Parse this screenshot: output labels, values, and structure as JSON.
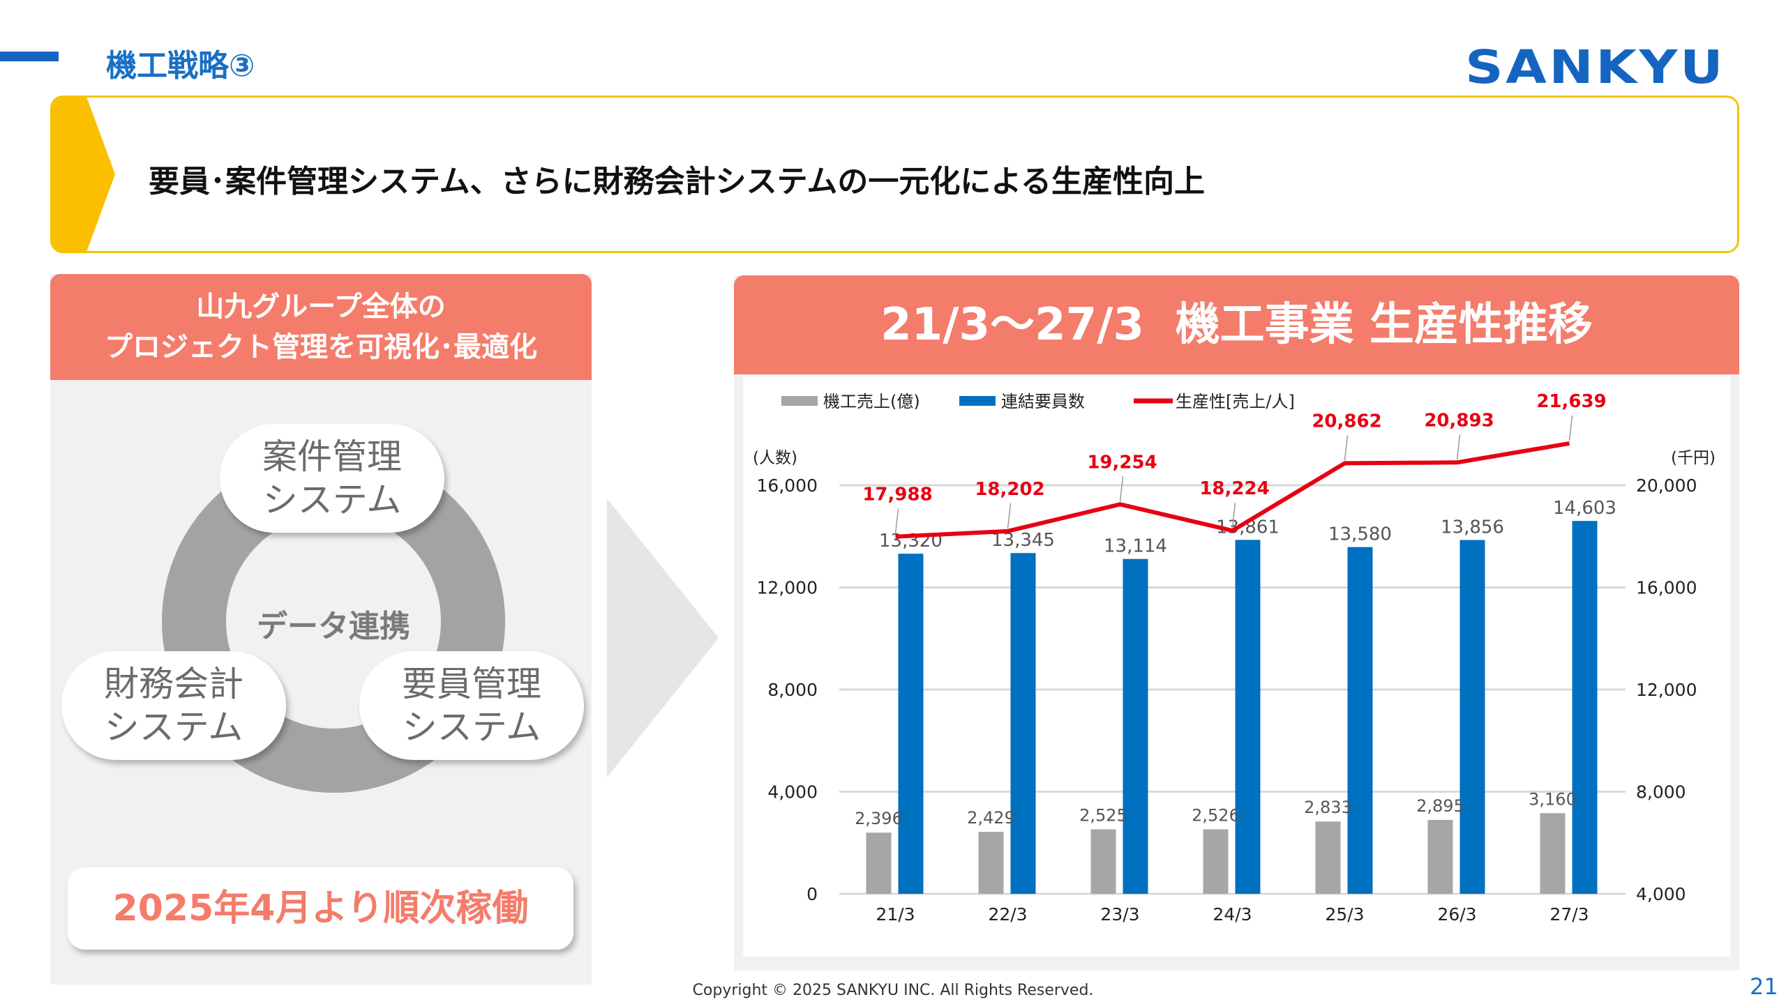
{
  "header": {
    "title": "機工戦略③",
    "logo": "SANKYU"
  },
  "banner": {
    "text": "要員･案件管理システム、さらに財務会計システムの一元化による生産性向上"
  },
  "left": {
    "heading_line1": "山九グループ全体の",
    "heading_line2": "プロジェクト管理を可視化･最適化",
    "center": "データ連携",
    "bubbles": [
      {
        "l1": "案件管理",
        "l2": "システム"
      },
      {
        "l1": "財務会計",
        "l2": "システム"
      },
      {
        "l1": "要員管理",
        "l2": "システム"
      }
    ],
    "start_label": "2025年4月より順次稼働"
  },
  "right": {
    "heading": "21/3～27/3  機工事業 生産性推移"
  },
  "chart_data": {
    "type": "bar+line",
    "categories": [
      "21/3",
      "22/3",
      "23/3",
      "24/3",
      "25/3",
      "26/3",
      "27/3"
    ],
    "left_axis": {
      "label": "(人数)",
      "range": [
        0,
        16000
      ],
      "ticks": [
        "0",
        "4,000",
        "8,000",
        "12,000",
        "16,000"
      ]
    },
    "right_axis": {
      "label": "(千円)",
      "range": [
        4000,
        20000
      ],
      "ticks": [
        "4,000",
        "8,000",
        "12,000",
        "16,000",
        "20,000"
      ]
    },
    "legend_position": "top-left",
    "series": [
      {
        "name": "機工売上(億)",
        "type": "bar",
        "axis": "left",
        "color": "#a6a6a6",
        "values": [
          2396,
          2429,
          2525,
          2526,
          2833,
          2895,
          3160
        ],
        "labels": [
          "2,396",
          "2,429",
          "2,525",
          "2,526",
          "2,833",
          "2,895",
          "3,160"
        ]
      },
      {
        "name": "連結要員数",
        "type": "bar",
        "axis": "left",
        "color": "#0070c0",
        "values": [
          13320,
          13345,
          13114,
          13861,
          13580,
          13856,
          14603
        ],
        "labels": [
          "13,320",
          "13,345",
          "13,114",
          "13,861",
          "13,580",
          "13,856",
          "14,603"
        ]
      },
      {
        "name": "生産性[売上/人]",
        "type": "line",
        "axis": "right",
        "color": "#e60012",
        "values": [
          17988,
          18202,
          19254,
          18224,
          20862,
          20893,
          21639
        ],
        "labels": [
          "17,988",
          "18,202",
          "19,254",
          "18,224",
          "20,862",
          "20,893",
          "21,639"
        ]
      }
    ]
  },
  "footer": {
    "copyright": "Copyright © 2025 SANKYU INC. All Rights Reserved.",
    "page": "21"
  }
}
